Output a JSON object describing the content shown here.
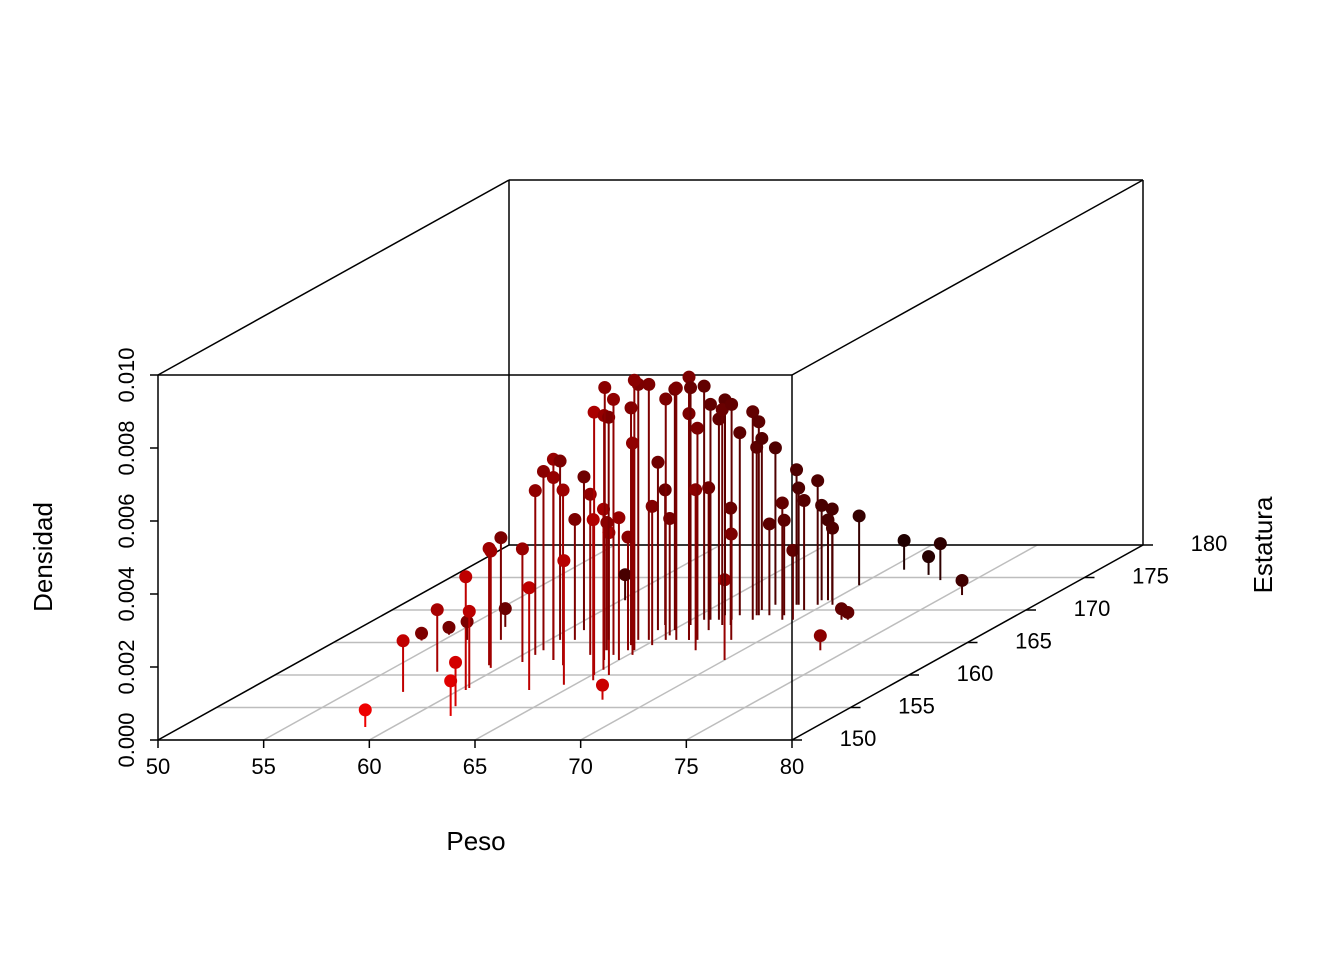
{
  "chart_data": {
    "type": "scatter3d",
    "xlabel": "Peso",
    "ylabel": "Estatura",
    "zlabel": "Densidad",
    "xlim": [
      50,
      80
    ],
    "ylim": [
      150,
      180
    ],
    "zlim": [
      0,
      0.01
    ],
    "xticks": [
      50,
      55,
      60,
      65,
      70,
      75,
      80
    ],
    "yticks": [
      150,
      155,
      160,
      165,
      170,
      175,
      180
    ],
    "zticks": [
      {
        "value": 0,
        "label": "0.000"
      },
      {
        "value": 0.002,
        "label": "0.002"
      },
      {
        "value": 0.004,
        "label": "0.004"
      },
      {
        "value": 0.006,
        "label": "0.006"
      },
      {
        "value": 0.008,
        "label": "0.008"
      },
      {
        "value": 0.01,
        "label": "0.010"
      }
    ],
    "grid": true,
    "type_h": true,
    "highlight_3d": true,
    "color_near": "#ff0000",
    "color_far": "#000000",
    "x": [
      58.7,
      57.5,
      54.0,
      57.4,
      54.8,
      61.8,
      61.2,
      60.3,
      56.1,
      60.3,
      59.3,
      59.6,
      57.7,
      56.8,
      60.6,
      63.3,
      60.6,
      60.6,
      61.9,
      61.9,
      60.5,
      62.8,
      64.5,
      61.2,
      60.8,
      63.2,
      65.1,
      65.5,
      64.3,
      65.1,
      67.6,
      65.8,
      63.6,
      62.8,
      64.3,
      65.0,
      64.6,
      60.2,
      64.3,
      63.5,
      64.2,
      64.9,
      65.2,
      64.7,
      65.3,
      64.3,
      64.2,
      65.3,
      65.5,
      65.1,
      66.0,
      66.6,
      66.6,
      65.4,
      67.8,
      67.0,
      65.6,
      65.9,
      66.7,
      66.3,
      70.0,
      66.2,
      66.9,
      66.9,
      67.3,
      66.9,
      68.6,
      67.9,
      67.7,
      67.8,
      67.5,
      68.3,
      67.7,
      69.3,
      69.0,
      69.8,
      68.7,
      68.8,
      69.5,
      69.7,
      73.7,
      69.5,
      69.8,
      70.0,
      70.4,
      72.1,
      72.4,
      70.0,
      70.8,
      72.4,
      73.4,
      75.7
    ],
    "y": [
      152.0,
      157.4,
      165.3,
      160.5,
      166.2,
      153.7,
      155.2,
      157.7,
      165.4,
      158.0,
      161.5,
      161.1,
      165.4,
      167.4,
      162.0,
      157.7,
      163.1,
      163.8,
      162.3,
      162.3,
      165.4,
      161.5,
      158.5,
      165.4,
      166.9,
      163.1,
      160.0,
      159.2,
      162.3,
      160.8,
      156.2,
      160.0,
      163.8,
      165.4,
      163.1,
      162.3,
      163.8,
      171.5,
      164.6,
      163.8,
      165.4,
      163.8,
      163.1,
      165.4,
      164.6,
      166.9,
      167.7,
      166.1,
      165.4,
      166.9,
      165.4,
      165.4,
      165.4,
      167.7,
      163.8,
      165.4,
      168.5,
      168.5,
      166.9,
      168.5,
      162.3,
      169.2,
      167.7,
      168.5,
      167.7,
      169.2,
      165.4,
      168.5,
      169.2,
      169.2,
      170.0,
      169.2,
      170.8,
      168.5,
      169.2,
      168.5,
      170.8,
      170.8,
      170.0,
      170.8,
      163.8,
      171.5,
      171.5,
      171.5,
      170.8,
      168.5,
      168.5,
      173.8,
      176.2,
      175.4,
      174.6,
      172.3
    ],
    "z": [
      0.00047,
      0.0014,
      0.0002,
      0.0017,
      0.0002,
      0.00096,
      0.0012,
      0.0031,
      0.0005,
      0.0021,
      0.0032,
      0.0032,
      0.0028,
      0.0005,
      0.0031,
      0.0028,
      0.0045,
      0.0049,
      0.005,
      0.0055,
      0.0049,
      0.0048,
      0.0034,
      0.0033,
      0.0042,
      0.0044,
      0.0072,
      0.0044,
      0.0067,
      0.0044,
      0.0004,
      0.0039,
      0.0035,
      0.0061,
      0.007,
      0.0039,
      0.0031,
      0.0007,
      0.0065,
      0.0072,
      0.007,
      0.0074,
      0.0058,
      0.007,
      0.0038,
      0.0046,
      0.0037,
      0.0032,
      0.0066,
      0.0066,
      0.0069,
      0.0072,
      0.0062,
      0.0065,
      0.0044,
      0.0058,
      0.0064,
      0.0059,
      0.0039,
      0.0055,
      0.0022,
      0.0059,
      0.0059,
      0.0059,
      0.0032,
      0.005,
      0.0029,
      0.0057,
      0.0046,
      0.0053,
      0.0047,
      0.0025,
      0.0043,
      0.0032,
      0.0026,
      0.0019,
      0.0037,
      0.0032,
      0.003,
      0.0034,
      0.0004,
      0.0026,
      0.0022,
      0.0025,
      0.0021,
      0.0003,
      0.0002,
      0.0019,
      0.0008,
      0.0005,
      0.001,
      0.0004
    ]
  }
}
